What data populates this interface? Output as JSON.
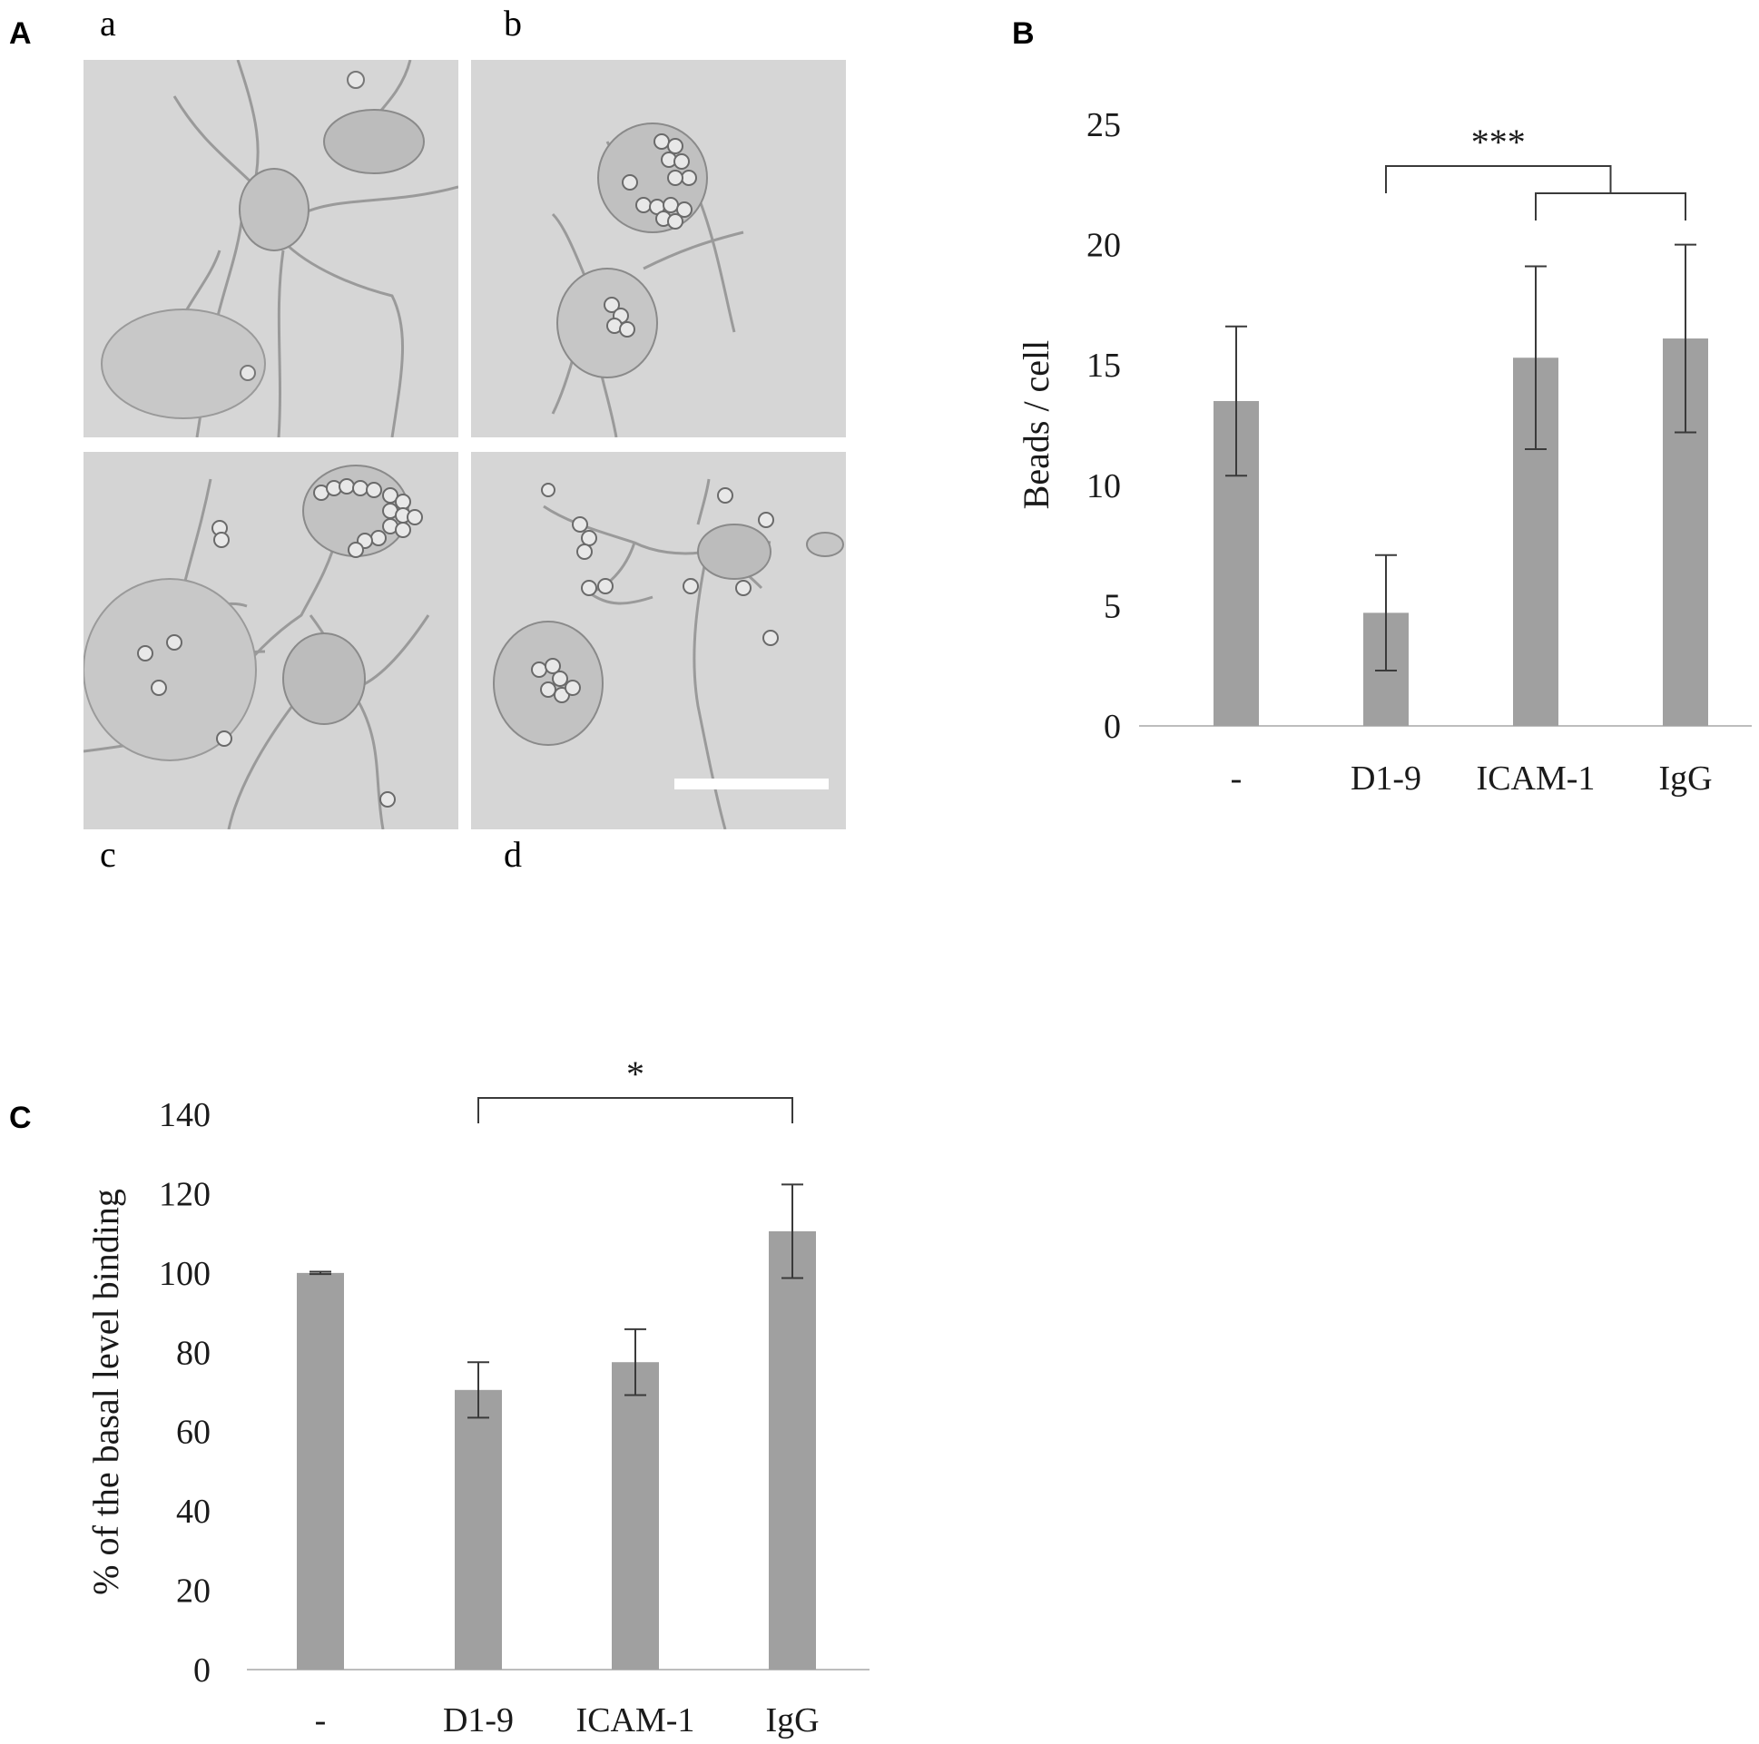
{
  "panel_labels": {
    "A": "A",
    "B": "B",
    "C": "C"
  },
  "micrographs": [
    {
      "label": "a"
    },
    {
      "label": "b"
    },
    {
      "label": "c"
    },
    {
      "label": "d"
    }
  ],
  "colors": {
    "bar": "#a0a0a0",
    "axis": "#bdbdbd",
    "error": "#3a3a3a",
    "micro_bg": "#d4d4d4"
  },
  "chart_data": [
    {
      "id": "B",
      "type": "bar",
      "categories": [
        "-",
        "D1-9",
        "ICAM-1",
        "IgG"
      ],
      "values": [
        13.5,
        4.7,
        15.3,
        16.1
      ],
      "errors": [
        3.1,
        2.4,
        3.8,
        3.9
      ],
      "ylabel": "Beads / cell",
      "ylim": [
        0,
        25
      ],
      "yticks": [
        0,
        5,
        10,
        15,
        20,
        25
      ],
      "grid": false,
      "significance": {
        "text": "***",
        "from": "D1-9",
        "to": [
          "ICAM-1",
          "IgG"
        ]
      }
    },
    {
      "id": "C",
      "type": "bar",
      "categories": [
        "-",
        "D1-9",
        "ICAM-1",
        "IgG"
      ],
      "values": [
        100,
        70.5,
        77.5,
        110.5
      ],
      "errors": [
        0.3,
        7,
        8.3,
        11.8
      ],
      "ylabel": "% of the basal level binding",
      "ylim": [
        0,
        140
      ],
      "yticks": [
        0,
        20,
        40,
        60,
        80,
        100,
        120,
        140
      ],
      "grid": false,
      "significance": {
        "text": "*",
        "from": "D1-9",
        "to": [
          "IgG"
        ]
      }
    }
  ]
}
